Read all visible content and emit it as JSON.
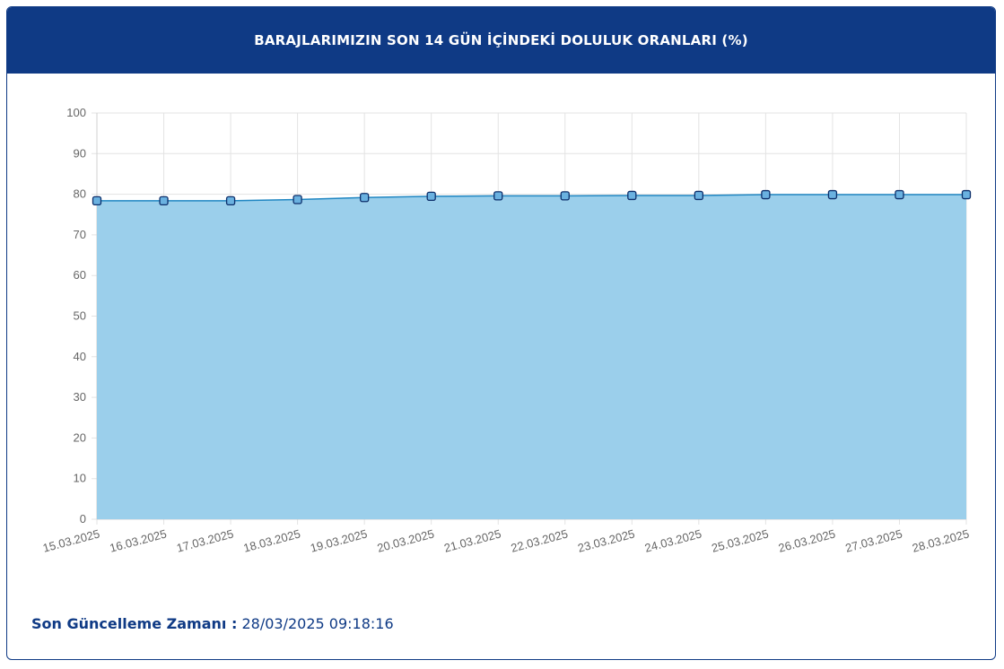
{
  "header": {
    "title": "BARAJLARIMIZIN SON 14 GÜN İÇİNDEKİ DOLULUK ORANLARI (%)"
  },
  "footer": {
    "label": "Son Güncelleme Zamanı :",
    "value": "28/03/2025 09:18:16"
  },
  "colors": {
    "header_bg": "#0f3a85",
    "area_fill": "#9bcfeb",
    "line": "#1f86c2",
    "marker_fill": "#6ab1e0",
    "marker_stroke": "#0d2f6b"
  },
  "chart_data": {
    "type": "area",
    "title": "BARAJLARIMIZIN SON 14 GÜN İÇİNDEKİ DOLULUK ORANLARI (%)",
    "xlabel": "",
    "ylabel": "",
    "ylim": [
      0,
      100
    ],
    "yticks": [
      0,
      10,
      20,
      30,
      40,
      50,
      60,
      70,
      80,
      90,
      100
    ],
    "grid": true,
    "legend": "none",
    "categories": [
      "15.03.2025",
      "16.03.2025",
      "17.03.2025",
      "18.03.2025",
      "19.03.2025",
      "20.03.2025",
      "21.03.2025",
      "22.03.2025",
      "23.03.2025",
      "24.03.2025",
      "25.03.2025",
      "26.03.2025",
      "27.03.2025",
      "28.03.2025"
    ],
    "values": [
      78.4,
      78.4,
      78.4,
      78.7,
      79.2,
      79.5,
      79.6,
      79.6,
      79.7,
      79.7,
      79.9,
      79.9,
      79.9,
      79.9
    ]
  }
}
